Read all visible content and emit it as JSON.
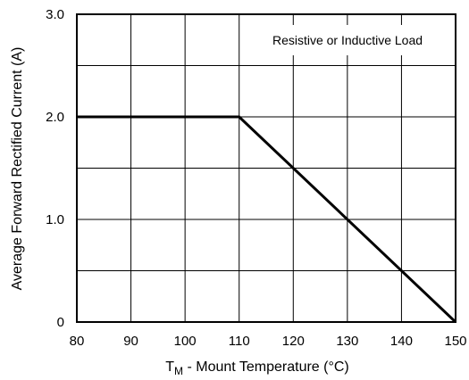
{
  "chart_data": {
    "type": "line",
    "title": "",
    "xlabel_main": "T",
    "xlabel_subscript": "M",
    "xlabel_rest": " - Mount Temperature (°C)",
    "ylabel": "Average Forward Rectified Current (A)",
    "xlim": [
      80,
      150
    ],
    "ylim": [
      0,
      3.0
    ],
    "x_ticks": [
      80,
      90,
      100,
      110,
      120,
      130,
      140,
      150
    ],
    "x_tick_labels": [
      "80",
      "90",
      "100",
      "110",
      "120",
      "130",
      "140",
      "150"
    ],
    "y_ticks": [
      0,
      1.0,
      2.0,
      3.0
    ],
    "y_tick_labels": [
      "0",
      "1.0",
      "2.0",
      "3.0"
    ],
    "x_grid": [
      80,
      90,
      100,
      110,
      120,
      130,
      140,
      150
    ],
    "y_grid": [
      0,
      0.5,
      1.0,
      1.5,
      2.0,
      2.5,
      3.0
    ],
    "grid": true,
    "annotation": "Resistive or Inductive Load",
    "series": [
      {
        "x": [
          80,
          110,
          150
        ],
        "y": [
          2.0,
          2.0,
          0
        ]
      }
    ]
  }
}
